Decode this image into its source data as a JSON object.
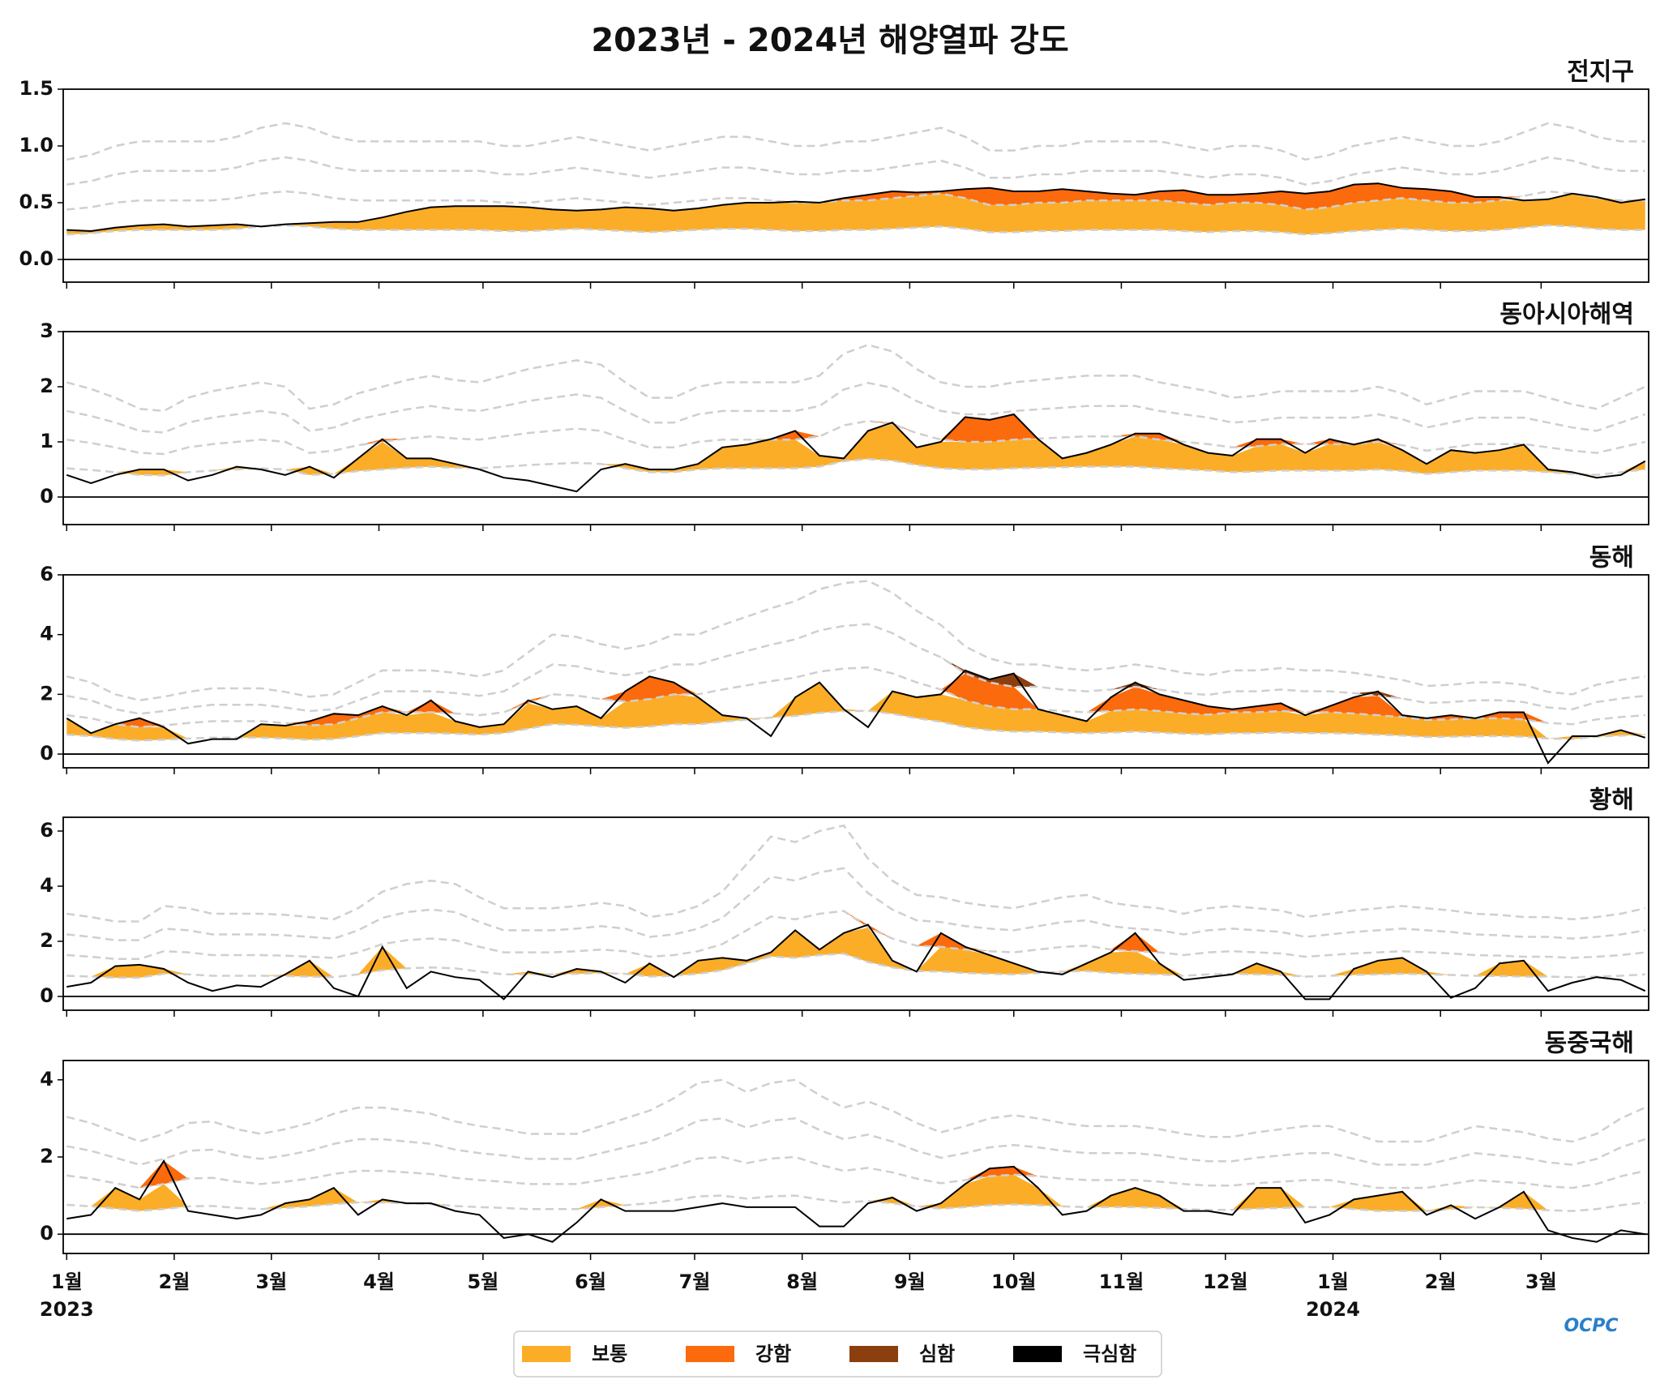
{
  "title": "2023년 - 2024년 해양열파 강도",
  "legend": [
    {
      "name": "보통",
      "color": "#fbad27"
    },
    {
      "name": "강함",
      "color": "#fb6a0c"
    },
    {
      "name": "심함",
      "color": "#8b3f0f"
    },
    {
      "name": "극심함",
      "color": "#000000"
    }
  ],
  "logo": "OCPC",
  "x_axis": {
    "xlim": [
      -1,
      456
    ],
    "xticks": [
      {
        "value": 0,
        "label": "1월"
      },
      {
        "value": 31,
        "label": "2월"
      },
      {
        "value": 59,
        "label": "3월"
      },
      {
        "value": 90,
        "label": "4월"
      },
      {
        "value": 120,
        "label": "5월"
      },
      {
        "value": 151,
        "label": "6월"
      },
      {
        "value": 181,
        "label": "7월"
      },
      {
        "value": 212,
        "label": "8월"
      },
      {
        "value": 243,
        "label": "9월"
      },
      {
        "value": 273,
        "label": "10월"
      },
      {
        "value": 304,
        "label": "11월"
      },
      {
        "value": 334,
        "label": "12월"
      },
      {
        "value": 365,
        "label": "1월"
      },
      {
        "value": 396,
        "label": "2월"
      },
      {
        "value": 425,
        "label": "3월"
      }
    ],
    "year_ticks": [
      {
        "value": 0,
        "label": "2023"
      },
      {
        "value": 365,
        "label": "2024"
      }
    ]
  },
  "x": [
    0,
    7,
    14,
    21,
    28,
    35,
    42,
    49,
    56,
    63,
    70,
    77,
    84,
    91,
    98,
    105,
    112,
    119,
    126,
    133,
    140,
    147,
    154,
    161,
    168,
    175,
    182,
    189,
    196,
    203,
    210,
    217,
    224,
    231,
    238,
    245,
    252,
    259,
    266,
    273,
    280,
    287,
    294,
    301,
    308,
    315,
    322,
    329,
    336,
    343,
    350,
    357,
    364,
    371,
    378,
    385,
    392,
    399,
    406,
    413,
    420,
    427,
    434,
    441,
    448,
    455
  ],
  "chart_data": [
    {
      "type": "heatwave",
      "title": "전지구",
      "ylim": [
        -0.2,
        1.5
      ],
      "yticks": [
        {
          "value": 0,
          "label": "0.0"
        },
        0.5,
        {
          "value": 1,
          "label": "1.0"
        },
        1.5
      ],
      "threshold": [
        0.22,
        0.23,
        0.25,
        0.26,
        0.26,
        0.26,
        0.26,
        0.27,
        0.29,
        0.3,
        0.29,
        0.27,
        0.26,
        0.26,
        0.26,
        0.26,
        0.26,
        0.26,
        0.25,
        0.25,
        0.26,
        0.27,
        0.26,
        0.25,
        0.24,
        0.25,
        0.26,
        0.27,
        0.27,
        0.26,
        0.25,
        0.25,
        0.26,
        0.26,
        0.27,
        0.28,
        0.29,
        0.27,
        0.24,
        0.24,
        0.25,
        0.25,
        0.26,
        0.26,
        0.26,
        0.26,
        0.25,
        0.24,
        0.25,
        0.25,
        0.24,
        0.22,
        0.23,
        0.25,
        0.26,
        0.27,
        0.26,
        0.25,
        0.25,
        0.26,
        0.28,
        0.3,
        0.29,
        0.27,
        0.26,
        0.26
      ],
      "values": [
        0.26,
        0.25,
        0.28,
        0.3,
        0.31,
        0.29,
        0.3,
        0.31,
        0.29,
        0.31,
        0.32,
        0.33,
        0.33,
        0.37,
        0.42,
        0.46,
        0.47,
        0.47,
        0.47,
        0.46,
        0.44,
        0.43,
        0.44,
        0.46,
        0.45,
        0.43,
        0.45,
        0.48,
        0.5,
        0.5,
        0.51,
        0.5,
        0.54,
        0.57,
        0.6,
        0.59,
        0.6,
        0.62,
        0.63,
        0.6,
        0.6,
        0.62,
        0.6,
        0.58,
        0.57,
        0.6,
        0.61,
        0.57,
        0.57,
        0.58,
        0.6,
        0.58,
        0.6,
        0.66,
        0.67,
        0.63,
        0.62,
        0.6,
        0.55,
        0.55,
        0.52,
        0.53,
        0.58,
        0.55,
        0.5,
        0.53
      ]
    },
    {
      "type": "heatwave",
      "title": "동아시아해역",
      "ylim": [
        -0.5,
        3
      ],
      "yticks": [
        0,
        1,
        2,
        3
      ],
      "threshold": [
        0.52,
        0.49,
        0.45,
        0.4,
        0.39,
        0.45,
        0.48,
        0.5,
        0.52,
        0.5,
        0.4,
        0.42,
        0.47,
        0.5,
        0.53,
        0.55,
        0.53,
        0.52,
        0.55,
        0.58,
        0.6,
        0.62,
        0.6,
        0.52,
        0.45,
        0.45,
        0.5,
        0.52,
        0.52,
        0.52,
        0.52,
        0.55,
        0.65,
        0.69,
        0.66,
        0.58,
        0.52,
        0.5,
        0.5,
        0.52,
        0.53,
        0.54,
        0.55,
        0.55,
        0.55,
        0.52,
        0.5,
        0.48,
        0.45,
        0.46,
        0.48,
        0.48,
        0.48,
        0.48,
        0.5,
        0.47,
        0.42,
        0.45,
        0.48,
        0.48,
        0.48,
        0.45,
        0.42,
        0.4,
        0.45,
        0.5
      ],
      "values": [
        0.4,
        0.25,
        0.4,
        0.5,
        0.5,
        0.3,
        0.4,
        0.55,
        0.5,
        0.4,
        0.55,
        0.35,
        0.7,
        1.05,
        0.7,
        0.7,
        0.6,
        0.5,
        0.35,
        0.3,
        0.2,
        0.1,
        0.5,
        0.6,
        0.5,
        0.5,
        0.6,
        0.9,
        0.95,
        1.05,
        1.2,
        0.75,
        0.7,
        1.2,
        1.35,
        0.9,
        1.0,
        1.45,
        1.4,
        1.5,
        1.05,
        0.7,
        0.8,
        0.95,
        1.15,
        1.15,
        0.95,
        0.8,
        0.75,
        1.05,
        1.05,
        0.8,
        1.05,
        0.95,
        1.05,
        0.85,
        0.6,
        0.85,
        0.8,
        0.85,
        0.95,
        0.5,
        0.45,
        0.35,
        0.4,
        0.65
      ]
    },
    {
      "type": "heatwave",
      "title": "동해",
      "ylim": [
        -0.46,
        6
      ],
      "yticks": [
        0,
        2,
        4,
        6
      ],
      "threshold": [
        0.65,
        0.6,
        0.5,
        0.45,
        0.48,
        0.52,
        0.55,
        0.55,
        0.55,
        0.52,
        0.48,
        0.5,
        0.6,
        0.7,
        0.7,
        0.7,
        0.68,
        0.65,
        0.7,
        0.85,
        1.0,
        0.98,
        0.92,
        0.88,
        0.92,
        1.0,
        1.0,
        1.08,
        1.15,
        1.22,
        1.28,
        1.38,
        1.43,
        1.45,
        1.35,
        1.2,
        1.08,
        0.9,
        0.8,
        0.75,
        0.75,
        0.72,
        0.7,
        0.72,
        0.75,
        0.72,
        0.68,
        0.66,
        0.7,
        0.7,
        0.72,
        0.7,
        0.7,
        0.68,
        0.65,
        0.62,
        0.57,
        0.58,
        0.6,
        0.6,
        0.58,
        0.52,
        0.5,
        0.58,
        0.62,
        0.65
      ],
      "values": [
        1.2,
        0.7,
        1.0,
        1.2,
        0.9,
        0.35,
        0.5,
        0.5,
        1.0,
        0.95,
        1.1,
        1.35,
        1.3,
        1.6,
        1.3,
        1.8,
        1.1,
        0.9,
        1.0,
        1.8,
        1.5,
        1.6,
        1.2,
        2.1,
        2.6,
        2.4,
        1.9,
        1.3,
        1.2,
        0.6,
        1.9,
        2.4,
        1.5,
        0.9,
        2.1,
        1.9,
        2.0,
        2.8,
        2.5,
        2.7,
        1.5,
        1.3,
        1.1,
        1.9,
        2.4,
        2.0,
        1.8,
        1.6,
        1.5,
        1.6,
        1.7,
        1.3,
        1.6,
        1.9,
        2.1,
        1.3,
        1.2,
        1.3,
        1.2,
        1.4,
        1.4,
        -0.3,
        0.6,
        0.6,
        0.8,
        0.55
      ]
    },
    {
      "type": "heatwave",
      "title": "황해",
      "ylim": [
        -0.5,
        6.5
      ],
      "yticks": [
        0,
        2,
        4,
        6
      ],
      "threshold": [
        0.75,
        0.72,
        0.68,
        0.68,
        0.82,
        0.8,
        0.75,
        0.75,
        0.75,
        0.74,
        0.72,
        0.7,
        0.8,
        0.95,
        1.02,
        1.05,
        1.02,
        0.9,
        0.8,
        0.8,
        0.8,
        0.82,
        0.85,
        0.82,
        0.72,
        0.75,
        0.82,
        0.95,
        1.2,
        1.45,
        1.4,
        1.5,
        1.55,
        1.25,
        1.05,
        0.92,
        0.9,
        0.85,
        0.82,
        0.8,
        0.85,
        0.9,
        0.92,
        0.85,
        0.82,
        0.8,
        0.75,
        0.8,
        0.82,
        0.8,
        0.78,
        0.72,
        0.75,
        0.78,
        0.8,
        0.82,
        0.8,
        0.78,
        0.75,
        0.74,
        0.72,
        0.72,
        0.7,
        0.72,
        0.75,
        0.8
      ],
      "values": [
        0.35,
        0.5,
        1.1,
        1.15,
        1.0,
        0.5,
        0.2,
        0.4,
        0.35,
        0.8,
        1.3,
        0.3,
        0.0,
        1.8,
        0.3,
        0.9,
        0.7,
        0.6,
        -0.1,
        0.9,
        0.7,
        1.0,
        0.9,
        0.5,
        1.2,
        0.7,
        1.3,
        1.4,
        1.3,
        1.6,
        2.4,
        1.7,
        2.3,
        2.6,
        1.3,
        0.9,
        2.3,
        1.8,
        1.5,
        1.2,
        0.9,
        0.8,
        1.2,
        1.6,
        2.3,
        1.2,
        0.6,
        0.7,
        0.8,
        1.2,
        0.9,
        -0.1,
        -0.1,
        1.0,
        1.3,
        1.4,
        0.9,
        -0.05,
        0.3,
        1.2,
        1.3,
        0.2,
        0.5,
        0.7,
        0.6,
        0.2
      ]
    },
    {
      "type": "heatwave",
      "title": "동중국해",
      "ylim": [
        -0.5,
        4.5
      ],
      "yticks": [
        0,
        2,
        4
      ],
      "threshold": [
        0.76,
        0.72,
        0.66,
        0.6,
        0.65,
        0.72,
        0.73,
        0.68,
        0.65,
        0.68,
        0.72,
        0.78,
        0.82,
        0.82,
        0.8,
        0.78,
        0.73,
        0.7,
        0.68,
        0.65,
        0.65,
        0.65,
        0.7,
        0.75,
        0.8,
        0.88,
        0.98,
        1.0,
        0.92,
        0.98,
        1.0,
        0.9,
        0.82,
        0.86,
        0.8,
        0.72,
        0.66,
        0.7,
        0.75,
        0.77,
        0.75,
        0.72,
        0.7,
        0.7,
        0.7,
        0.68,
        0.65,
        0.63,
        0.63,
        0.66,
        0.68,
        0.7,
        0.7,
        0.65,
        0.6,
        0.6,
        0.6,
        0.65,
        0.7,
        0.68,
        0.66,
        0.62,
        0.6,
        0.65,
        0.75,
        0.82
      ],
      "values": [
        0.4,
        0.5,
        1.2,
        0.9,
        1.9,
        0.6,
        0.5,
        0.4,
        0.5,
        0.8,
        0.9,
        1.2,
        0.5,
        0.9,
        0.8,
        0.8,
        0.6,
        0.5,
        -0.1,
        0.0,
        -0.2,
        0.3,
        0.9,
        0.6,
        0.6,
        0.6,
        0.7,
        0.8,
        0.7,
        0.7,
        0.7,
        0.2,
        0.2,
        0.8,
        0.95,
        0.6,
        0.8,
        1.3,
        1.7,
        1.75,
        1.2,
        0.5,
        0.6,
        1.0,
        1.2,
        1.0,
        0.6,
        0.6,
        0.5,
        1.2,
        1.2,
        0.3,
        0.5,
        0.9,
        1.0,
        1.1,
        0.5,
        0.75,
        0.4,
        0.7,
        1.1,
        0.1,
        -0.1,
        -0.2,
        0.1,
        0.0
      ]
    }
  ]
}
